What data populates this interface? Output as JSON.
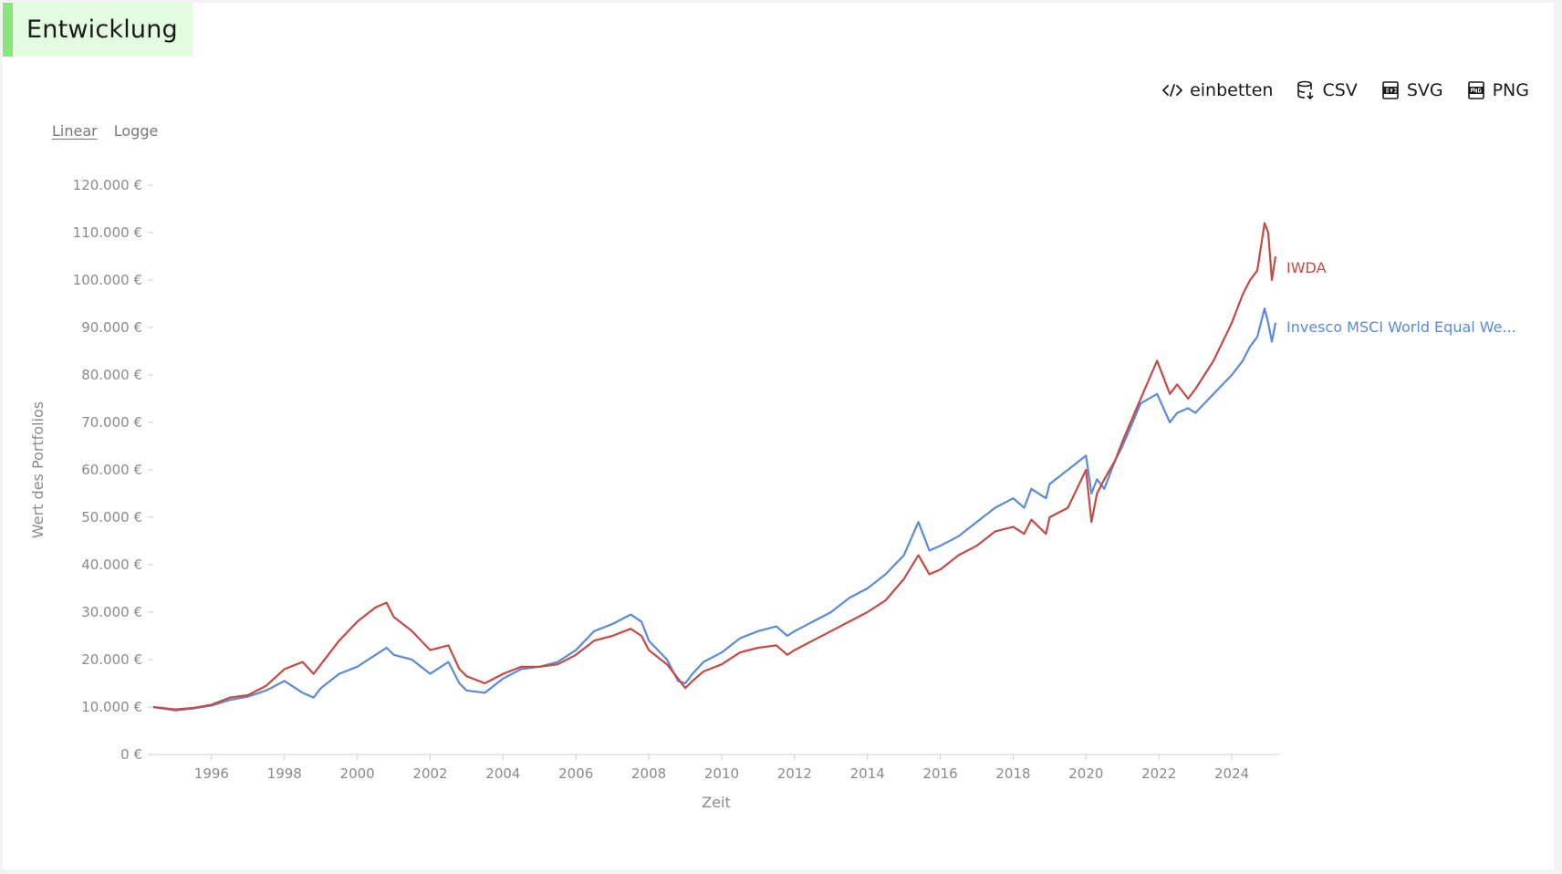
{
  "header": {
    "title": "Entwicklung"
  },
  "toolbar": {
    "embed_label": "einbetten",
    "csv_label": "CSV",
    "svg_label": "SVG",
    "png_label": "PNG"
  },
  "scale": {
    "linear_label": "Linear",
    "log_label": "Logge",
    "selected": "linear"
  },
  "colors": {
    "series1": "#c44a45",
    "series2": "#5b8ad8",
    "accent": "#8ae57c"
  },
  "chart_data": {
    "type": "line",
    "xlabel": "Zeit",
    "ylabel": "Wert des Portfolios",
    "xlim": [
      1994.4,
      2025.3
    ],
    "ylim": [
      0,
      120000
    ],
    "x_ticks": [
      1996,
      1998,
      2000,
      2002,
      2004,
      2006,
      2008,
      2010,
      2012,
      2014,
      2016,
      2018,
      2020,
      2022,
      2024
    ],
    "x_tick_labels": [
      "1996",
      "1998",
      "2000",
      "2002",
      "2004",
      "2006",
      "2008",
      "2010",
      "2012",
      "2014",
      "2016",
      "2018",
      "2020",
      "2022",
      "2024"
    ],
    "y_ticks": [
      0,
      10000,
      20000,
      30000,
      40000,
      50000,
      60000,
      70000,
      80000,
      90000,
      100000,
      110000,
      120000
    ],
    "y_tick_labels": [
      "0 €",
      "10.000 €",
      "20.000 €",
      "30.000 €",
      "40.000 €",
      "50.000 €",
      "60.000 €",
      "70.000 €",
      "80.000 €",
      "90.000 €",
      "100.000 €",
      "110.000 €",
      "120.000 €"
    ],
    "grid": false,
    "legend": "inline-end-labels",
    "series": [
      {
        "name": "IWDA",
        "x": [
          1994.4,
          1995.0,
          1995.5,
          1996.0,
          1996.5,
          1997.0,
          1997.5,
          1998.0,
          1998.5,
          1998.8,
          1999.0,
          1999.5,
          2000.0,
          2000.5,
          2000.8,
          2001.0,
          2001.5,
          2002.0,
          2002.5,
          2002.8,
          2003.0,
          2003.5,
          2004.0,
          2004.5,
          2005.0,
          2005.5,
          2006.0,
          2006.5,
          2007.0,
          2007.5,
          2007.8,
          2008.0,
          2008.5,
          2008.8,
          2009.0,
          2009.2,
          2009.5,
          2010.0,
          2010.5,
          2011.0,
          2011.5,
          2011.8,
          2012.0,
          2012.5,
          2013.0,
          2013.5,
          2014.0,
          2014.5,
          2015.0,
          2015.4,
          2015.7,
          2016.0,
          2016.5,
          2017.0,
          2017.5,
          2018.0,
          2018.3,
          2018.5,
          2018.9,
          2019.0,
          2019.5,
          2020.0,
          2020.15,
          2020.3,
          2020.5,
          2020.8,
          2021.0,
          2021.5,
          2021.95,
          2022.3,
          2022.5,
          2022.8,
          2023.0,
          2023.5,
          2024.0,
          2024.3,
          2024.5,
          2024.7,
          2024.9,
          2025.0,
          2025.1,
          2025.2
        ],
        "values": [
          10000,
          9500,
          9800,
          10500,
          12000,
          12500,
          14500,
          18000,
          19500,
          17000,
          19000,
          24000,
          28000,
          31000,
          32000,
          29000,
          26000,
          22000,
          23000,
          18000,
          16500,
          15000,
          17000,
          18500,
          18500,
          19000,
          21000,
          24000,
          25000,
          26500,
          25000,
          22000,
          19000,
          16000,
          14000,
          15500,
          17500,
          19000,
          21500,
          22500,
          23000,
          21000,
          22000,
          24000,
          26000,
          28000,
          30000,
          32500,
          37000,
          42000,
          38000,
          39000,
          42000,
          44000,
          47000,
          48000,
          46500,
          49500,
          46500,
          50000,
          52000,
          60000,
          49000,
          55000,
          58000,
          62000,
          66000,
          75000,
          83000,
          76000,
          78000,
          75000,
          77000,
          83000,
          91000,
          97000,
          100000,
          102000,
          112000,
          110000,
          100000,
          105000
        ]
      },
      {
        "name": "Invesco MSCI World Equal We...",
        "x": [
          1994.4,
          1995.0,
          1995.5,
          1996.0,
          1996.5,
          1997.0,
          1997.5,
          1998.0,
          1998.5,
          1998.8,
          1999.0,
          1999.5,
          2000.0,
          2000.5,
          2000.8,
          2001.0,
          2001.5,
          2002.0,
          2002.5,
          2002.8,
          2003.0,
          2003.5,
          2004.0,
          2004.5,
          2005.0,
          2005.5,
          2006.0,
          2006.5,
          2007.0,
          2007.5,
          2007.8,
          2008.0,
          2008.5,
          2008.8,
          2009.0,
          2009.2,
          2009.5,
          2010.0,
          2010.5,
          2011.0,
          2011.5,
          2011.8,
          2012.0,
          2012.5,
          2013.0,
          2013.5,
          2014.0,
          2014.5,
          2015.0,
          2015.4,
          2015.7,
          2016.0,
          2016.5,
          2017.0,
          2017.5,
          2018.0,
          2018.3,
          2018.5,
          2018.9,
          2019.0,
          2019.5,
          2020.0,
          2020.15,
          2020.3,
          2020.5,
          2020.8,
          2021.0,
          2021.5,
          2021.95,
          2022.3,
          2022.5,
          2022.8,
          2023.0,
          2023.5,
          2024.0,
          2024.3,
          2024.5,
          2024.7,
          2024.9,
          2025.0,
          2025.1,
          2025.2
        ],
        "values": [
          10000,
          9300,
          9700,
          10300,
          11500,
          12200,
          13500,
          15500,
          13000,
          12000,
          14000,
          17000,
          18500,
          21000,
          22500,
          21000,
          20000,
          17000,
          19500,
          15000,
          13500,
          13000,
          16000,
          18000,
          18500,
          19500,
          22000,
          26000,
          27500,
          29500,
          28000,
          24000,
          20000,
          15500,
          15000,
          17000,
          19500,
          21500,
          24500,
          26000,
          27000,
          25000,
          26000,
          28000,
          30000,
          33000,
          35000,
          38000,
          42000,
          49000,
          43000,
          44000,
          46000,
          49000,
          52000,
          54000,
          52000,
          56000,
          54000,
          57000,
          60000,
          63000,
          55000,
          58000,
          56000,
          62000,
          65000,
          74000,
          76000,
          70000,
          72000,
          73000,
          72000,
          76000,
          80000,
          83000,
          86000,
          88000,
          94000,
          91000,
          87000,
          91000
        ]
      }
    ]
  }
}
